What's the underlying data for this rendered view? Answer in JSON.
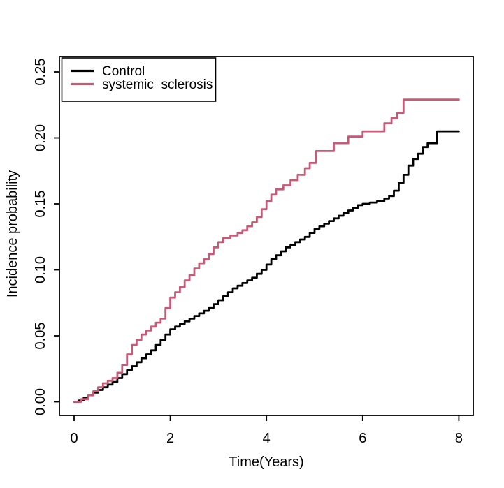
{
  "chart_data": {
    "type": "line",
    "subtype": "step-cumulative-incidence",
    "title": "",
    "xlabel": "Time(Years)",
    "ylabel": "Incidence probability",
    "xlim": [
      0,
      8
    ],
    "ylim": [
      0,
      0.25
    ],
    "grid": false,
    "legend_position": "topleft",
    "x_ticks": [
      {
        "value": 0,
        "label": "0"
      },
      {
        "value": 2,
        "label": "2"
      },
      {
        "value": 4,
        "label": "4"
      },
      {
        "value": 6,
        "label": "6"
      },
      {
        "value": 8,
        "label": "8"
      }
    ],
    "y_ticks": [
      {
        "value": 0.0,
        "label": "0.00"
      },
      {
        "value": 0.05,
        "label": "0.05"
      },
      {
        "value": 0.1,
        "label": "0.10"
      },
      {
        "value": 0.15,
        "label": "0.15"
      },
      {
        "value": 0.2,
        "label": "0.20"
      },
      {
        "value": 0.25,
        "label": "0.25"
      }
    ],
    "colors": {
      "control": "#000000",
      "systemic_sclerosis": "#C85A76",
      "axis": "#000000"
    },
    "legend": {
      "entries": [
        {
          "label": "Control",
          "color": "#000000"
        },
        {
          "label": "systemic  sclerosis",
          "color": "#C85A76"
        }
      ]
    },
    "series": [
      {
        "name": "Control",
        "color": "#000000",
        "points": [
          [
            0,
            0
          ],
          [
            0.1,
            0.001
          ],
          [
            0.2,
            0.003
          ],
          [
            0.3,
            0.005
          ],
          [
            0.4,
            0.007
          ],
          [
            0.5,
            0.009
          ],
          [
            0.6,
            0.011
          ],
          [
            0.7,
            0.013
          ],
          [
            0.8,
            0.015
          ],
          [
            0.9,
            0.018
          ],
          [
            1.0,
            0.021
          ],
          [
            1.1,
            0.024
          ],
          [
            1.2,
            0.027
          ],
          [
            1.3,
            0.03
          ],
          [
            1.4,
            0.033
          ],
          [
            1.5,
            0.036
          ],
          [
            1.6,
            0.039
          ],
          [
            1.7,
            0.043
          ],
          [
            1.8,
            0.047
          ],
          [
            1.9,
            0.051
          ],
          [
            2.0,
            0.055
          ],
          [
            2.1,
            0.057
          ],
          [
            2.2,
            0.059
          ],
          [
            2.3,
            0.061
          ],
          [
            2.4,
            0.063
          ],
          [
            2.5,
            0.065
          ],
          [
            2.6,
            0.067
          ],
          [
            2.7,
            0.069
          ],
          [
            2.8,
            0.071
          ],
          [
            2.9,
            0.074
          ],
          [
            3.0,
            0.077
          ],
          [
            3.1,
            0.08
          ],
          [
            3.2,
            0.083
          ],
          [
            3.3,
            0.086
          ],
          [
            3.4,
            0.088
          ],
          [
            3.5,
            0.09
          ],
          [
            3.6,
            0.092
          ],
          [
            3.7,
            0.094
          ],
          [
            3.8,
            0.097
          ],
          [
            3.9,
            0.1
          ],
          [
            4.0,
            0.104
          ],
          [
            4.1,
            0.108
          ],
          [
            4.2,
            0.111
          ],
          [
            4.3,
            0.114
          ],
          [
            4.4,
            0.117
          ],
          [
            4.5,
            0.119
          ],
          [
            4.6,
            0.121
          ],
          [
            4.7,
            0.123
          ],
          [
            4.8,
            0.125
          ],
          [
            4.9,
            0.128
          ],
          [
            5.0,
            0.131
          ],
          [
            5.1,
            0.133
          ],
          [
            5.2,
            0.135
          ],
          [
            5.3,
            0.137
          ],
          [
            5.4,
            0.139
          ],
          [
            5.5,
            0.141
          ],
          [
            5.6,
            0.143
          ],
          [
            5.7,
            0.145
          ],
          [
            5.8,
            0.147
          ],
          [
            5.9,
            0.149
          ],
          [
            6.0,
            0.15
          ],
          [
            6.15,
            0.151
          ],
          [
            6.3,
            0.152
          ],
          [
            6.45,
            0.154
          ],
          [
            6.55,
            0.156
          ],
          [
            6.65,
            0.16
          ],
          [
            6.75,
            0.166
          ],
          [
            6.85,
            0.172
          ],
          [
            6.95,
            0.179
          ],
          [
            7.05,
            0.184
          ],
          [
            7.15,
            0.188
          ],
          [
            7.25,
            0.193
          ],
          [
            7.35,
            0.196
          ],
          [
            7.55,
            0.205
          ],
          [
            8,
            0.205
          ]
        ]
      },
      {
        "name": "systemic sclerosis",
        "color": "#C85A76",
        "points": [
          [
            0,
            0
          ],
          [
            0.15,
            0.002
          ],
          [
            0.3,
            0.005
          ],
          [
            0.4,
            0.008
          ],
          [
            0.5,
            0.011
          ],
          [
            0.6,
            0.014
          ],
          [
            0.7,
            0.016
          ],
          [
            0.8,
            0.018
          ],
          [
            0.9,
            0.022
          ],
          [
            1.0,
            0.028
          ],
          [
            1.1,
            0.036
          ],
          [
            1.2,
            0.043
          ],
          [
            1.3,
            0.047
          ],
          [
            1.4,
            0.051
          ],
          [
            1.5,
            0.054
          ],
          [
            1.6,
            0.057
          ],
          [
            1.7,
            0.06
          ],
          [
            1.8,
            0.063
          ],
          [
            1.9,
            0.071
          ],
          [
            2.0,
            0.079
          ],
          [
            2.1,
            0.083
          ],
          [
            2.2,
            0.087
          ],
          [
            2.3,
            0.092
          ],
          [
            2.4,
            0.096
          ],
          [
            2.5,
            0.101
          ],
          [
            2.6,
            0.105
          ],
          [
            2.7,
            0.108
          ],
          [
            2.8,
            0.112
          ],
          [
            2.9,
            0.117
          ],
          [
            3.0,
            0.121
          ],
          [
            3.1,
            0.124
          ],
          [
            3.25,
            0.126
          ],
          [
            3.4,
            0.128
          ],
          [
            3.5,
            0.13
          ],
          [
            3.6,
            0.133
          ],
          [
            3.7,
            0.136
          ],
          [
            3.8,
            0.14
          ],
          [
            3.9,
            0.146
          ],
          [
            4.0,
            0.152
          ],
          [
            4.1,
            0.157
          ],
          [
            4.2,
            0.161
          ],
          [
            4.35,
            0.164
          ],
          [
            4.5,
            0.168
          ],
          [
            4.65,
            0.172
          ],
          [
            4.8,
            0.177
          ],
          [
            4.9,
            0.181
          ],
          [
            5.03,
            0.19
          ],
          [
            5.4,
            0.196
          ],
          [
            5.7,
            0.201
          ],
          [
            6.0,
            0.205
          ],
          [
            6.45,
            0.211
          ],
          [
            6.6,
            0.215
          ],
          [
            6.72,
            0.219
          ],
          [
            6.85,
            0.229
          ],
          [
            8,
            0.229
          ]
        ]
      }
    ]
  }
}
